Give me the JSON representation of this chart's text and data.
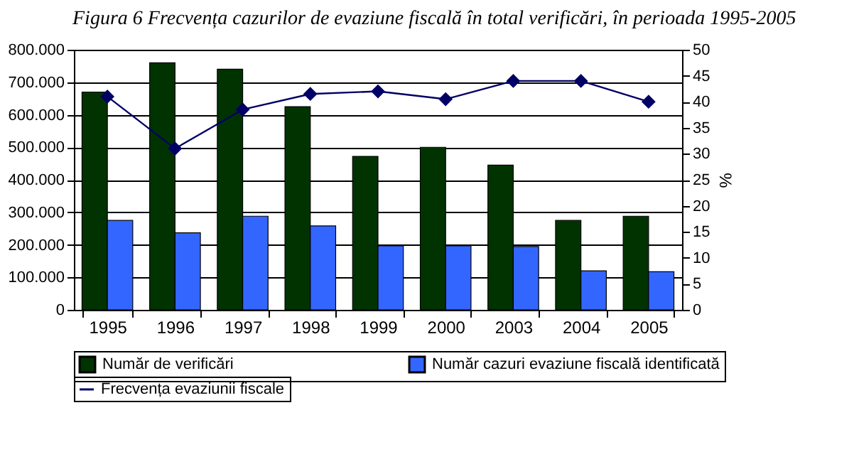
{
  "chart_data": {
    "type": "bar",
    "title": "Figura 6   Frecvența cazurilor de evaziune fiscală în total verificări, în perioada 1995-2005",
    "ylabel": null,
    "y2label": "%",
    "categories": [
      "1995",
      "1996",
      "1997",
      "1998",
      "1999",
      "2000",
      "2003",
      "2004",
      "2005"
    ],
    "series": [
      {
        "name": "Număr de verificări",
        "color": "#003300",
        "values": [
          670000,
          760000,
          740000,
          625000,
          472000,
          500000,
          445000,
          275000,
          288000
        ]
      },
      {
        "name": "Număr cazuri evaziune fiscală identificată",
        "color": "#3366ff",
        "values": [
          275000,
          237000,
          288000,
          258000,
          197000,
          197000,
          195000,
          120000,
          117000
        ]
      },
      {
        "name": "Frecvența evaziunii fiscale",
        "type": "line",
        "axis": "y2",
        "color": "#000066",
        "values": [
          41,
          31,
          38.5,
          41.5,
          42,
          40.5,
          44,
          44,
          40
        ]
      }
    ],
    "ylim": [
      0,
      800000
    ],
    "yticks": [
      {
        "value": 0,
        "label": "0"
      },
      {
        "value": 100000,
        "label": "100.000"
      },
      {
        "value": 200000,
        "label": "200.000"
      },
      {
        "value": 300000,
        "label": "300.000"
      },
      {
        "value": 400000,
        "label": "400.000"
      },
      {
        "value": 500000,
        "label": "500.000"
      },
      {
        "value": 600000,
        "label": "600.000"
      },
      {
        "value": 700000,
        "label": "700.000"
      },
      {
        "value": 800000,
        "label": "800.000"
      }
    ],
    "y2lim": [
      0,
      50
    ],
    "y2ticks": [
      0,
      5,
      10,
      15,
      20,
      25,
      30,
      35,
      40,
      45,
      50
    ],
    "grid": "y",
    "legend": "bottom",
    "marker": "diamond"
  }
}
